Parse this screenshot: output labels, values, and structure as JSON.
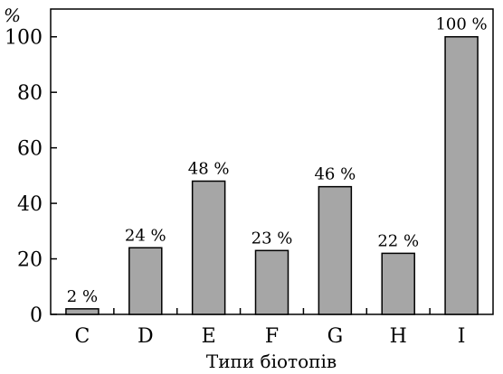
{
  "chart_data": {
    "type": "bar",
    "categories": [
      "C",
      "D",
      "E",
      "F",
      "G",
      "H",
      "I"
    ],
    "values": [
      2,
      24,
      48,
      23,
      46,
      22,
      100
    ],
    "data_labels": [
      "2 %",
      "24 %",
      "48 %",
      "23 %",
      "46 %",
      "22 %",
      "100 %"
    ],
    "xlabel": "Типи біотопів",
    "ylabel": "%",
    "ylim": [
      0,
      110
    ],
    "yticks": [
      0,
      20,
      40,
      60,
      80,
      100
    ],
    "grid": false,
    "bar_color": "#a6a6a6",
    "edge_color": "#000000"
  }
}
